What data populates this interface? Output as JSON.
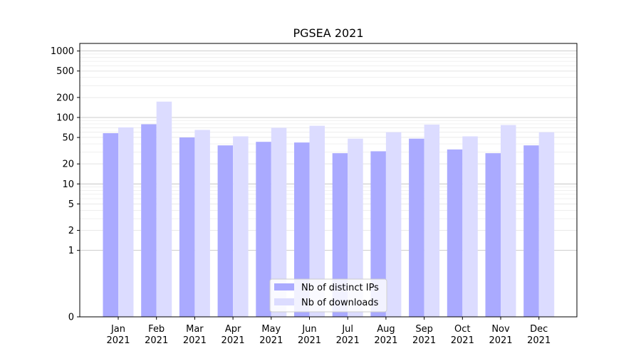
{
  "chart_data": {
    "type": "bar",
    "title": "PGSEA 2021",
    "xlabel": "",
    "ylabel": "",
    "yscale": "symlog",
    "ylim": [
      0,
      1300
    ],
    "ytick_labels": [
      "0",
      "1",
      "2",
      "5",
      "10",
      "20",
      "50",
      "100",
      "200",
      "500",
      "1000"
    ],
    "grid": "horizontal",
    "legend_position": "lower center",
    "categories": [
      "Jan\n2021",
      "Feb\n2021",
      "Mar\n2021",
      "Apr\n2021",
      "May\n2021",
      "Jun\n2021",
      "Jul\n2021",
      "Aug\n2021",
      "Sep\n2021",
      "Oct\n2021",
      "Nov\n2021",
      "Dec\n2021"
    ],
    "series": [
      {
        "name": "Nb of distinct IPs",
        "color": "#aaaaff",
        "values": [
          58,
          79,
          50,
          38,
          43,
          42,
          29,
          31,
          48,
          33,
          29,
          38
        ]
      },
      {
        "name": "Nb of downloads",
        "color": "#dcdcff",
        "values": [
          71,
          173,
          65,
          52,
          70,
          75,
          48,
          60,
          78,
          52,
          77,
          60
        ]
      }
    ]
  }
}
